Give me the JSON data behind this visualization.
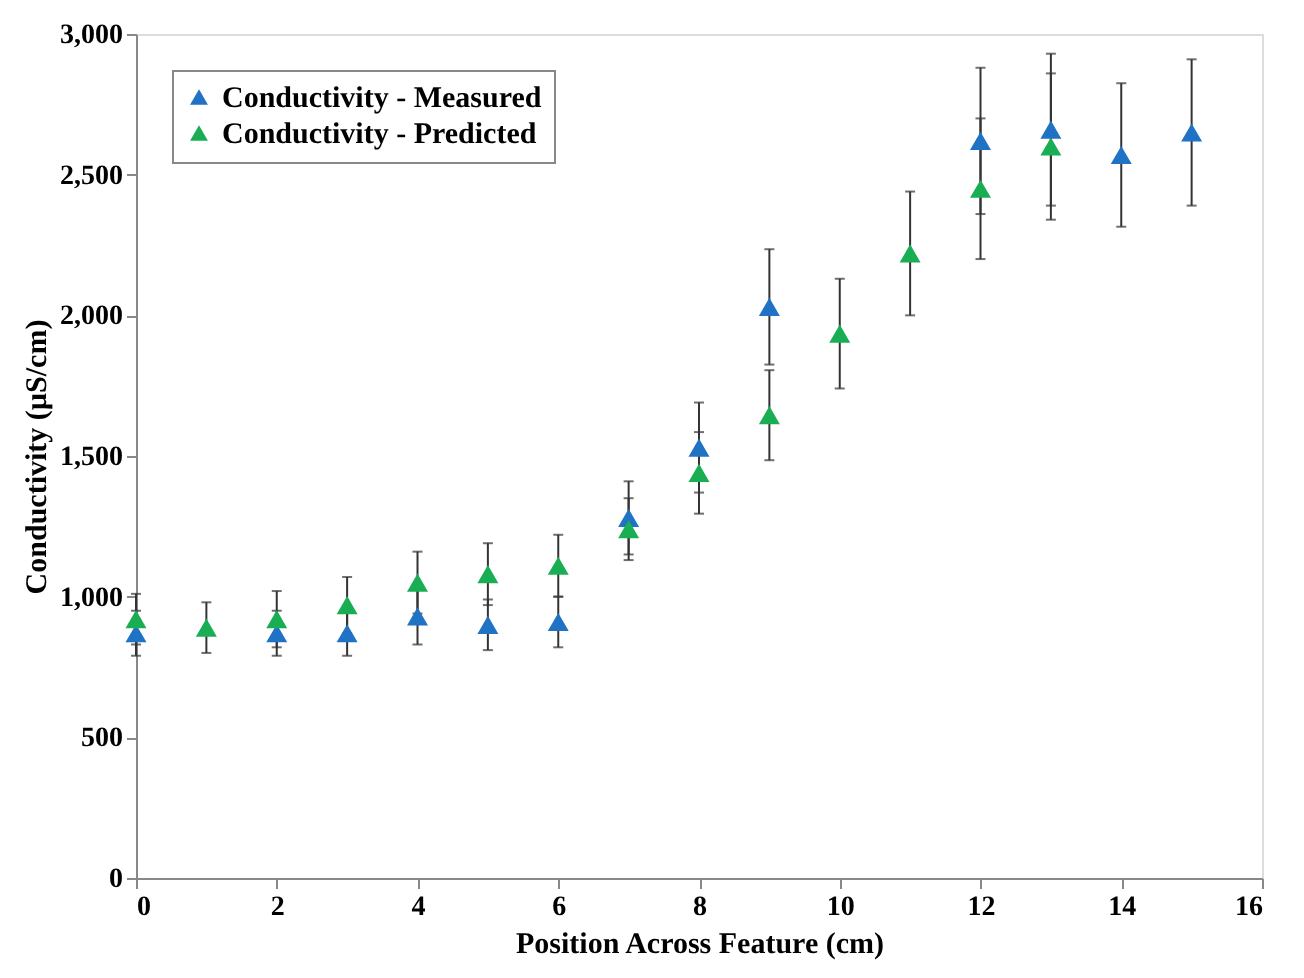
{
  "chart_data": {
    "type": "scatter",
    "xlabel": "Position Across Feature (cm)",
    "ylabel": "Conductivity (µS/cm)",
    "xlim": [
      0,
      16
    ],
    "xticks": [
      0,
      2,
      4,
      6,
      8,
      10,
      12,
      14,
      16
    ],
    "ylim": [
      0,
      3000
    ],
    "yticks": [
      {
        "value": 0,
        "label": "0"
      },
      {
        "value": 500,
        "label": "500"
      },
      {
        "value": 1000,
        "label": "1,000"
      },
      {
        "value": 1500,
        "label": "1,500"
      },
      {
        "value": 2000,
        "label": "2,000"
      },
      {
        "value": 2500,
        "label": "2,500"
      },
      {
        "value": 3000,
        "label": "3,000"
      }
    ],
    "marker": "triangle",
    "grid": false,
    "legend": "top left",
    "x": [
      0,
      1,
      2,
      3,
      4,
      5,
      6,
      7,
      8,
      9,
      10,
      11,
      12,
      13,
      14,
      15
    ],
    "series": [
      {
        "name": "Conductivity - Measured",
        "color": "#1f72c4",
        "values": [
          870,
          null,
          870,
          870,
          930,
          900,
          910,
          1280,
          1530,
          2030,
          null,
          null,
          2620,
          2660,
          2570,
          2650
        ],
        "errors": [
          80,
          null,
          80,
          80,
          100,
          90,
          90,
          130,
          160,
          205,
          null,
          null,
          260,
          270,
          255,
          260
        ]
      },
      {
        "name": "Conductivity - Predicted",
        "color": "#1aae54",
        "values": [
          920,
          890,
          920,
          970,
          1050,
          1080,
          1110,
          1240,
          1440,
          1645,
          1935,
          2220,
          2450,
          2600,
          null,
          null
        ],
        "errors": [
          90,
          90,
          100,
          100,
          110,
          110,
          110,
          110,
          145,
          160,
          195,
          220,
          250,
          260,
          null,
          null
        ]
      }
    ]
  }
}
